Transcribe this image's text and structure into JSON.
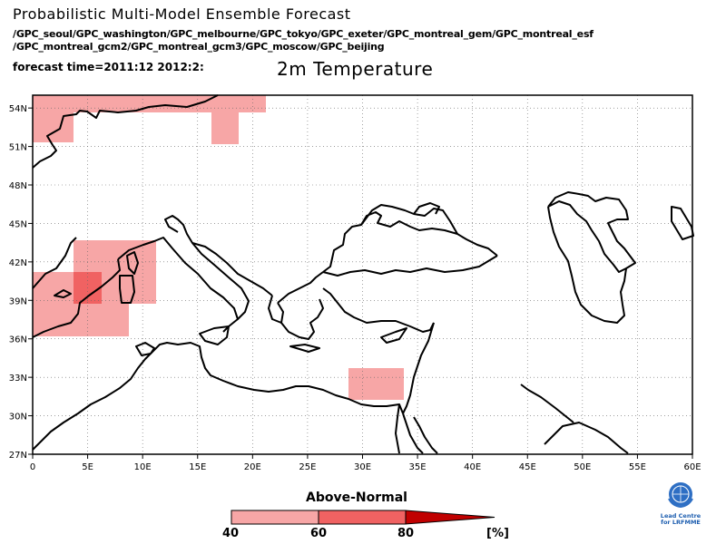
{
  "header": {
    "title": "Probabilistic Multi-Model Ensemble Forecast",
    "models_line1": "/GPC_seoul/GPC_washington/GPC_melbourne/GPC_tokyo/GPC_exeter/GPC_montreal_gem/GPC_montreal_esf",
    "models_line2": "/GPC_montreal_gcm2/GPC_montreal_gcm3/GPC_moscow/GPC_beijing",
    "forecast_time": "forecast time=2011:12 2012:2:",
    "variable": "2m Temperature"
  },
  "map": {
    "lon_range": [
      0,
      60
    ],
    "lat_range": [
      27,
      55
    ],
    "x_ticks": [
      "0",
      "5E",
      "10E",
      "15E",
      "20E",
      "25E",
      "30E",
      "35E",
      "40E",
      "45E",
      "50E",
      "55E",
      "60E"
    ],
    "y_ticks": [
      "27N",
      "30N",
      "33N",
      "36N",
      "39N",
      "42N",
      "45N",
      "48N",
      "51N",
      "54N"
    ],
    "colors": {
      "40_60": "#f7a6a6",
      "60_80": "#f06262",
      "80_up": "#c00000",
      "coast": "#000000",
      "grid": "#666666"
    }
  },
  "legend": {
    "title": "Above-Normal",
    "labels": [
      "40",
      "60",
      "80"
    ],
    "unit": "[%]"
  },
  "logo": {
    "text_line1": "Lead Centre",
    "text_line2": "for LRFMME"
  }
}
